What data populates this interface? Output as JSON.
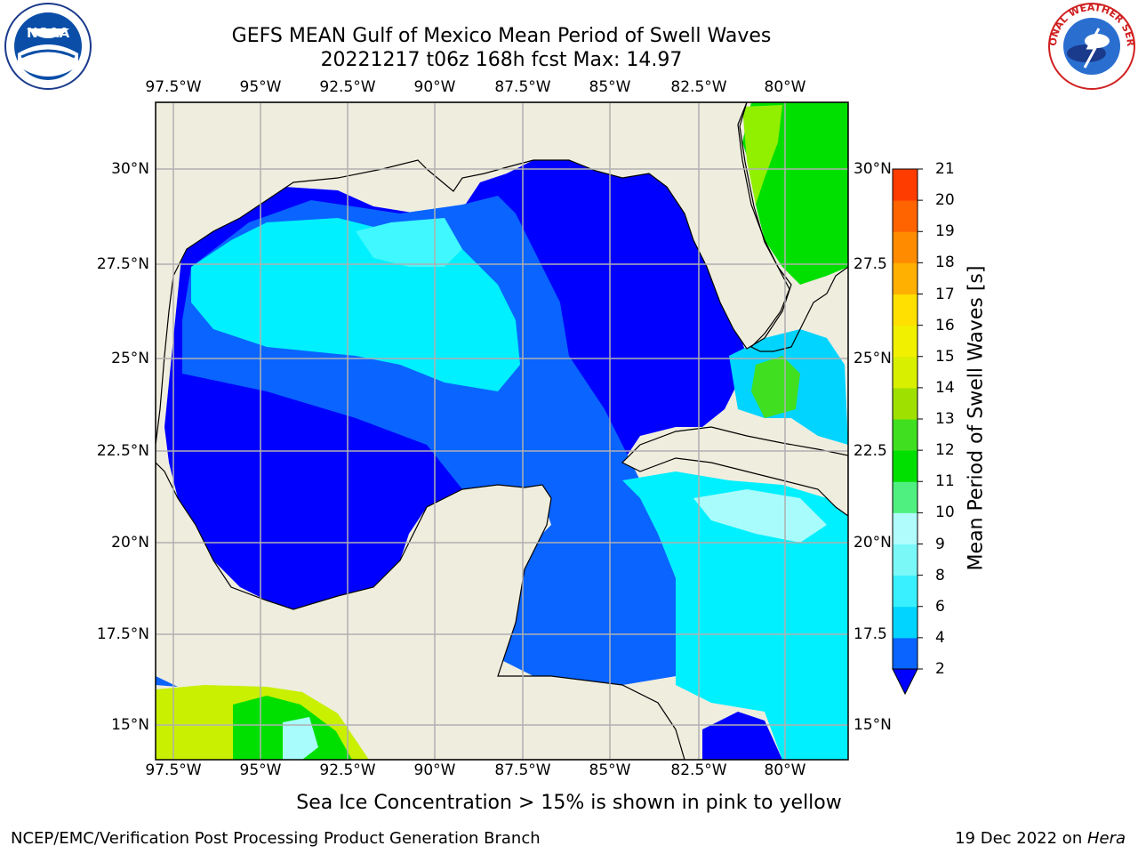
{
  "header": {
    "title_line1": "GEFS MEAN Gulf of Mexico Mean Period of Swell Waves",
    "title_line2": "20221217 t06z 168h fcst   Max: 14.97"
  },
  "map": {
    "lon_ticks": [
      "97.5°W",
      "95°W",
      "92.5°W",
      "90°W",
      "87.5°W",
      "85°W",
      "82.5°W",
      "80°W"
    ],
    "lat_ticks": [
      "30°N",
      "27.5°N",
      "25°N",
      "22.5°N",
      "20°N",
      "17.5°N",
      "15°N"
    ],
    "right_lat_ticks": [
      "30°N",
      "27.5",
      "25°N",
      "22.5",
      "20°N",
      "17.5",
      "15°N"
    ],
    "land_color": "#efedde",
    "grid_color": "#b0b0b0"
  },
  "colorbar": {
    "label": "Mean Period of Swell Waves [s]",
    "ticks": [
      "2",
      "4",
      "6",
      "8",
      "9",
      "10",
      "11",
      "12",
      "13",
      "14",
      "15",
      "16",
      "17",
      "18",
      "19",
      "20",
      "21"
    ],
    "colors": [
      "#0a64ff",
      "#00d4ff",
      "#38f0ff",
      "#7af8f8",
      "#b0fcfc",
      "#50f080",
      "#00e000",
      "#40e020",
      "#a0e000",
      "#d8f000",
      "#f0f000",
      "#ffe000",
      "#ffb000",
      "#ff8c00",
      "#ff6400",
      "#ff3c00",
      "#ff0000"
    ],
    "extend_color": "#0000ff"
  },
  "logos": {
    "noaa_text": "NOAA",
    "nws_text": "NATIONAL WEATHER SERVICE"
  },
  "note": "Sea Ice Concentration > 15% is shown in pink to yellow",
  "footer": {
    "left": "NCEP/EMC/Verification Post Processing Product Generation Branch",
    "right_prefix": "19 Dec 2022 on ",
    "right_machine": "Hera"
  }
}
